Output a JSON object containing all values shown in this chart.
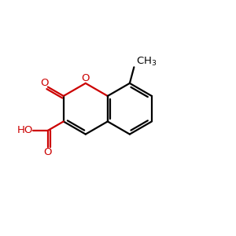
{
  "bg_color": "#ffffff",
  "black": "#000000",
  "red": "#cc0000",
  "lw": 1.6,
  "figsize": [
    3.0,
    3.0
  ],
  "dpi": 100,
  "xlim": [
    0,
    10
  ],
  "ylim": [
    0,
    10
  ],
  "hex_r": 1.1,
  "lc_x": 3.6,
  "lc_y": 5.4,
  "fs": 9.5
}
